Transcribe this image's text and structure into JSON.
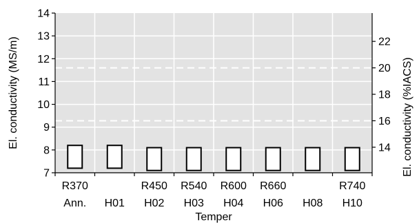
{
  "chart_data": {
    "type": "bar",
    "title": "",
    "xlabel": "Temper",
    "ylabel": "El. conductivity  (MS/m)",
    "ylabel_right": "El. conductivity  (%IACS)",
    "ylim": [
      7,
      14
    ],
    "yticks": [
      "7",
      "8",
      "9",
      "10",
      "11",
      "12",
      "13",
      "14"
    ],
    "ylim_right": [
      12.07,
      24.14
    ],
    "yticks_right": [
      "14",
      "16",
      "18",
      "20",
      "22"
    ],
    "categories": [
      {
        "line1": "R370",
        "line2": "Ann."
      },
      {
        "line1": "",
        "line2": "H01"
      },
      {
        "line1": "R450",
        "line2": "H02"
      },
      {
        "line1": "R540",
        "line2": "H03"
      },
      {
        "line1": "R600",
        "line2": "H04"
      },
      {
        "line1": "R660",
        "line2": "H06"
      },
      {
        "line1": "",
        "line2": "H08"
      },
      {
        "line1": "R740",
        "line2": "H10"
      }
    ],
    "series": [
      {
        "ranges": [
          [
            7.2,
            8.2
          ],
          [
            7.2,
            8.2
          ],
          [
            7.1,
            8.1
          ],
          [
            7.1,
            8.1
          ],
          [
            7.1,
            8.1
          ],
          [
            7.1,
            8.1
          ],
          [
            7.1,
            8.1
          ],
          [
            7.1,
            8.1
          ]
        ]
      }
    ],
    "reference_lines_right": [
      16,
      20
    ],
    "grid": true,
    "legend": "none"
  },
  "colors": {
    "plot_background": "#e3e3e3",
    "grid": "#ffffff",
    "bar_fill": "#ffffff",
    "bar_stroke": "#000000",
    "axis": "#000000"
  }
}
